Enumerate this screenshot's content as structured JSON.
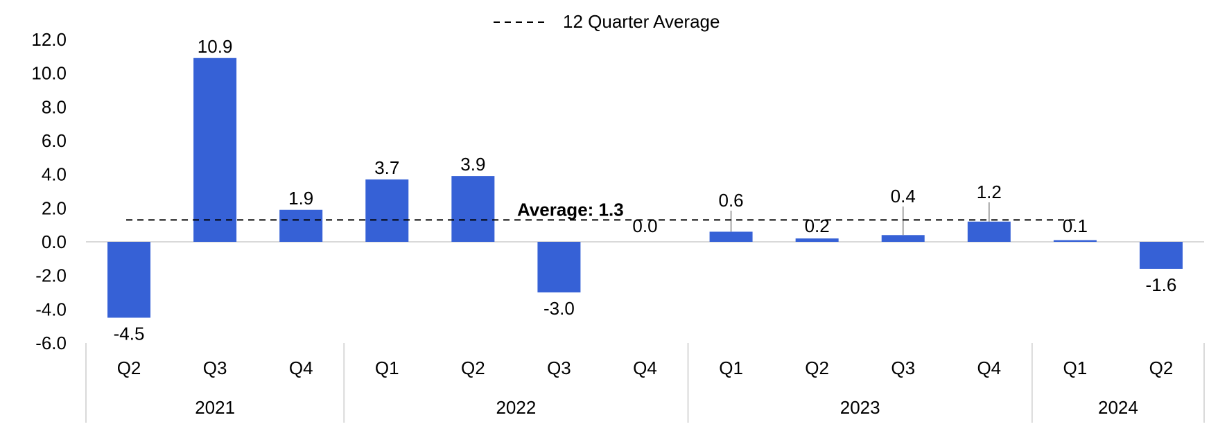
{
  "chart_data": {
    "type": "bar",
    "legend": {
      "label": "12 Quarter Average",
      "placement": "top-center"
    },
    "average_annotation": "Average: 1.3",
    "average_value": 1.3,
    "ylim": [
      -6,
      12
    ],
    "y_ticks": [
      12,
      10,
      8,
      6,
      4,
      2,
      0,
      -2,
      -4,
      -6
    ],
    "y_tick_labels": [
      "12.0",
      "10.0",
      "8.0",
      "6.0",
      "4.0",
      "2.0",
      "0.0",
      "-2.0",
      "-4.0",
      "-6.0"
    ],
    "categories": [
      "Q2",
      "Q3",
      "Q4",
      "Q1",
      "Q2",
      "Q3",
      "Q4",
      "Q1",
      "Q2",
      "Q3",
      "Q4",
      "Q1",
      "Q2"
    ],
    "values": [
      -4.5,
      10.9,
      1.9,
      3.7,
      3.9,
      -3.0,
      0.0,
      0.6,
      0.2,
      0.4,
      1.2,
      0.1,
      -1.6
    ],
    "value_labels": [
      "-4.5",
      "10.9",
      "1.9",
      "3.7",
      "3.9",
      "-3.0",
      "0.0",
      "0.6",
      "0.2",
      "0.4",
      "1.2",
      "0.1",
      "-1.6"
    ],
    "year_groups": [
      {
        "label": "2021",
        "count": 3
      },
      {
        "label": "2022",
        "count": 4
      },
      {
        "label": "2023",
        "count": 4
      },
      {
        "label": "2024",
        "count": 2
      }
    ],
    "colors": {
      "bar": "#3661D6",
      "average_line": "#000000",
      "axis": "#D9D9D9",
      "leader": "#A6A6A6"
    }
  }
}
